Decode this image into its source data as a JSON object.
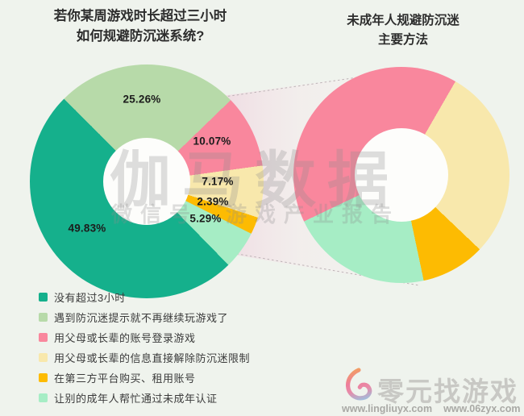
{
  "background": "#eff3ed",
  "colors": {
    "teal": "#15b08c",
    "light_green": "#b7daa9",
    "pink": "#f9879d",
    "cream": "#f8e8ac",
    "orange": "#fdbb02",
    "mint": "#a6edc5"
  },
  "left_title": {
    "line1": "若你某周游戏时长超过三小时",
    "line2": "如何规避防沉迷系统?"
  },
  "right_title": {
    "line1": "未成年人规避防沉迷",
    "line2": "主要方法"
  },
  "chart_data": [
    {
      "type": "pie",
      "subtype": "donut",
      "title": "若你某周游戏时长超过三小时如何规避防沉迷系统?",
      "start_angle_deg": -45,
      "slices": [
        {
          "label": "遇到防沉迷提示就不再继续玩游戏了",
          "value": 25.26,
          "display": "25.26%",
          "color": "#b7daa9"
        },
        {
          "label": "用父母或长辈的账号登录游戏",
          "value": 10.07,
          "display": "10.07%",
          "color": "#f9879d"
        },
        {
          "label": "用父母或长辈的信息直接解除防沉迷限制",
          "value": 7.17,
          "display": "7.17%",
          "color": "#f8e8ac"
        },
        {
          "label": "在第三方平台购买、租用账号",
          "value": 2.39,
          "display": "2.39%",
          "color": "#fdbb02"
        },
        {
          "label": "让别的成年人帮忙通过未成年认证",
          "value": 5.29,
          "display": "5.29%",
          "color": "#a6edc5"
        },
        {
          "label": "没有超过3小时",
          "value": 49.83,
          "display": "49.83%",
          "color": "#15b08c"
        }
      ]
    },
    {
      "type": "pie",
      "subtype": "donut",
      "title": "未成年人规避防沉迷主要方法",
      "note_values_estimated": true,
      "start_angle_deg": 30,
      "slices": [
        {
          "label": "用父母或长辈的信息直接解除防沉迷限制",
          "value": 28.77,
          "color": "#f8e8ac"
        },
        {
          "label": "在第三方平台购买、租用账号",
          "value": 9.59,
          "color": "#fdbb02"
        },
        {
          "label": "让别的成年人帮忙通过未成年认证",
          "value": 21.23,
          "color": "#a6edc5"
        },
        {
          "label": "用父母或长辈的账号登录游戏",
          "value": 40.41,
          "color": "#f9879d"
        }
      ]
    }
  ],
  "legend": {
    "items": [
      {
        "label": "没有超过3小时",
        "color": "#15b08c"
      },
      {
        "label": "遇到防沉迷提示就不再继续玩游戏了",
        "color": "#b7daa9"
      },
      {
        "label": "用父母或长辈的账号登录游戏",
        "color": "#f9879d"
      },
      {
        "label": "用父母或长辈的信息直接解除防沉迷限制",
        "color": "#f8e8ac"
      },
      {
        "label": "在第三方平台购买、租用账号",
        "color": "#fdbb02"
      },
      {
        "label": "让别的成年人帮忙通过未成年认证",
        "color": "#a6edc5"
      }
    ]
  },
  "watermark": {
    "line1": "伽马数据",
    "line2_left": "微信号",
    "line2_right": "游戏产业报告"
  },
  "footer": {
    "brand": "零元找游戏",
    "url_left": "www.lingliuyx.com",
    "url_right": "www.06zyx.com"
  }
}
